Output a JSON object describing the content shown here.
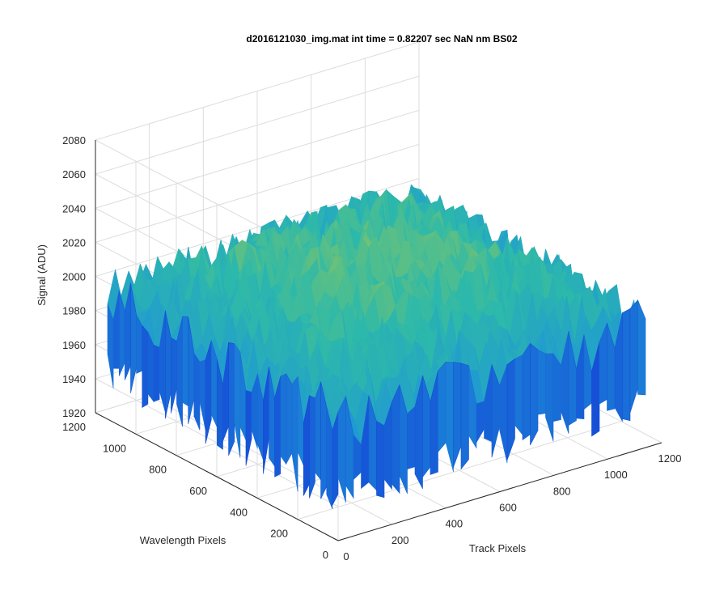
{
  "chart_data": {
    "type": "surface",
    "title": "d2016121030_img.mat int time = 0.82207 sec  NaN nm BS02",
    "xlabel": "Track Pixels",
    "ylabel": "Wavelength Pixels",
    "zlabel": "Signal (ADU)",
    "xlim": [
      0,
      1200
    ],
    "ylim": [
      0,
      1200
    ],
    "zlim": [
      1920,
      2080
    ],
    "xticks": [
      "0",
      "200",
      "400",
      "600",
      "800",
      "1000",
      "1200"
    ],
    "yticks": [
      "0",
      "200",
      "400",
      "600",
      "800",
      "1000",
      "1200"
    ],
    "zticks": [
      "1920",
      "1940",
      "1960",
      "1980",
      "2000",
      "2020",
      "2040",
      "2060",
      "2080"
    ],
    "grid": true,
    "colormap": "parula",
    "colors": {
      "low": "#1a5fd6",
      "mid": "#26a5c8",
      "midhigh": "#5cbf8a",
      "high": "#d6c84a"
    },
    "surface_extent": {
      "x": [
        0,
        1140
      ],
      "y": [
        0,
        1140
      ]
    },
    "surface_profile": {
      "mean_signal_center": 2020,
      "mean_signal_edges": 1990,
      "noise_amplitude": 18,
      "min_signal": 1935,
      "max_signal": 2060
    }
  }
}
